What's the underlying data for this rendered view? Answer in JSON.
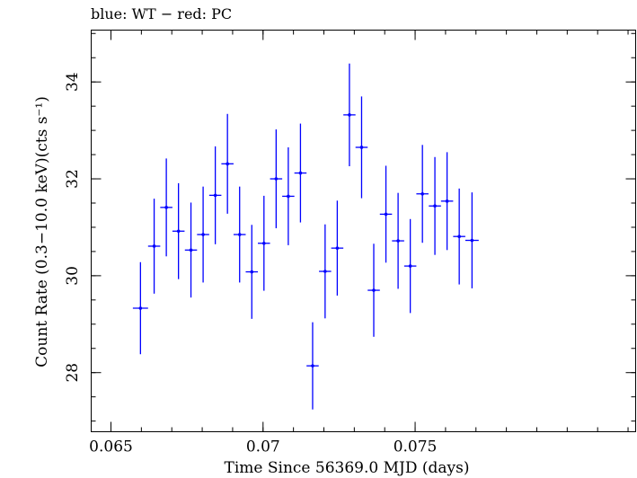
{
  "chart_data": {
    "type": "scatter",
    "title": "blue: WT − red: PC",
    "xlabel": "Time Since 56369.0 MJD (days)",
    "ylabel": "Count Rate (0.3−10.0 keV)(cts s⁻¹)",
    "xlim": [
      0.06435,
      0.08225
    ],
    "ylim": [
      26.78,
      35.07
    ],
    "x_ticks": [
      {
        "value": 0.065,
        "label": "0.065"
      },
      {
        "value": 0.07,
        "label": "0.07"
      },
      {
        "value": 0.075,
        "label": "0.075"
      }
    ],
    "x_minor_step": 0.001,
    "y_ticks": [
      {
        "value": 28,
        "label": "28"
      },
      {
        "value": 30,
        "label": "30"
      },
      {
        "value": 32,
        "label": "32"
      },
      {
        "value": 34,
        "label": "34"
      }
    ],
    "y_minor_step": 0.5,
    "grid": false,
    "series": [
      {
        "name": "WT",
        "color": "#0000ff",
        "points": [
          {
            "x": 0.06597,
            "xerr": 0.00025,
            "y": 29.33,
            "yerr": 0.95
          },
          {
            "x": 0.06642,
            "xerr": 0.0002,
            "y": 30.61,
            "yerr": 0.98
          },
          {
            "x": 0.06682,
            "xerr": 0.0002,
            "y": 31.41,
            "yerr": 1.01
          },
          {
            "x": 0.06722,
            "xerr": 0.0002,
            "y": 30.92,
            "yerr": 0.99
          },
          {
            "x": 0.06763,
            "xerr": 0.0002,
            "y": 30.53,
            "yerr": 0.98
          },
          {
            "x": 0.06803,
            "xerr": 0.0002,
            "y": 30.85,
            "yerr": 0.99
          },
          {
            "x": 0.06843,
            "xerr": 0.0002,
            "y": 31.66,
            "yerr": 1.01
          },
          {
            "x": 0.06883,
            "xerr": 0.0002,
            "y": 32.31,
            "yerr": 1.03
          },
          {
            "x": 0.06923,
            "xerr": 0.0002,
            "y": 30.85,
            "yerr": 0.99
          },
          {
            "x": 0.06963,
            "xerr": 0.0002,
            "y": 30.08,
            "yerr": 0.97
          },
          {
            "x": 0.07003,
            "xerr": 0.0002,
            "y": 30.67,
            "yerr": 0.98
          },
          {
            "x": 0.07043,
            "xerr": 0.0002,
            "y": 32.0,
            "yerr": 1.02
          },
          {
            "x": 0.07083,
            "xerr": 0.0002,
            "y": 31.64,
            "yerr": 1.01
          },
          {
            "x": 0.07123,
            "xerr": 0.0002,
            "y": 32.12,
            "yerr": 1.02
          },
          {
            "x": 0.07163,
            "xerr": 0.0002,
            "y": 28.14,
            "yerr": 0.9
          },
          {
            "x": 0.07204,
            "xerr": 0.0002,
            "y": 30.09,
            "yerr": 0.97
          },
          {
            "x": 0.07244,
            "xerr": 0.0002,
            "y": 30.57,
            "yerr": 0.98
          },
          {
            "x": 0.07284,
            "xerr": 0.0002,
            "y": 33.32,
            "yerr": 1.06
          },
          {
            "x": 0.07324,
            "xerr": 0.0002,
            "y": 32.65,
            "yerr": 1.05
          },
          {
            "x": 0.07364,
            "xerr": 0.0002,
            "y": 29.7,
            "yerr": 0.96
          },
          {
            "x": 0.07404,
            "xerr": 0.0002,
            "y": 31.27,
            "yerr": 1.0
          },
          {
            "x": 0.07444,
            "xerr": 0.0002,
            "y": 30.72,
            "yerr": 0.99
          },
          {
            "x": 0.07484,
            "xerr": 0.0002,
            "y": 30.2,
            "yerr": 0.97
          },
          {
            "x": 0.07524,
            "xerr": 0.0002,
            "y": 31.69,
            "yerr": 1.01
          },
          {
            "x": 0.07565,
            "xerr": 0.0002,
            "y": 31.44,
            "yerr": 1.01
          },
          {
            "x": 0.07605,
            "xerr": 0.0002,
            "y": 31.54,
            "yerr": 1.01
          },
          {
            "x": 0.07645,
            "xerr": 0.0002,
            "y": 30.81,
            "yerr": 0.99
          },
          {
            "x": 0.07687,
            "xerr": 0.00022,
            "y": 30.73,
            "yerr": 0.99
          }
        ]
      }
    ]
  }
}
